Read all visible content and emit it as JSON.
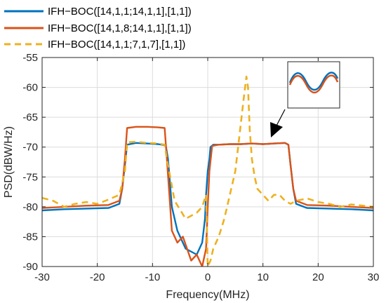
{
  "chart_data": {
    "type": "line",
    "xlabel": "Frequency(MHz)",
    "ylabel": "PSD(dBW/Hz)",
    "xlim": [
      -30,
      30
    ],
    "ylim": [
      -90,
      -55
    ],
    "xticks": [
      "-30",
      "-20",
      "-10",
      "0",
      "10",
      "20",
      "30"
    ],
    "xtick_values": [
      -30,
      -20,
      -10,
      0,
      10,
      20,
      30
    ],
    "yticks": [
      "-55",
      "-60",
      "-65",
      "-70",
      "-75",
      "-80",
      "-85",
      "-90"
    ],
    "ytick_values": [
      -55,
      -60,
      -65,
      -70,
      -75,
      -80,
      -85,
      -90
    ],
    "grid": true,
    "legend_position": "top-left, above plot",
    "inset": "zoom box near (12, -61) with arrow pointing to the right main lobe at about (10, -69.6)",
    "series": [
      {
        "name": "IFH−BOC([14,1,1;14,1,1],[1,1])",
        "color": "#0072BD",
        "style": "solid",
        "x": [
          -30,
          -26,
          -22,
          -18,
          -16,
          -15.5,
          -15,
          -14.6,
          -13,
          -11,
          -9,
          -7.6,
          -7.2,
          -6.5,
          -5.5,
          -4,
          -2,
          -1,
          -0.5,
          -0.3,
          0,
          0.3,
          0.5,
          1,
          2,
          4,
          6,
          8,
          10,
          12,
          14,
          14.6,
          15,
          15.5,
          16,
          18,
          22,
          26,
          30
        ],
        "y": [
          -80.6,
          -80.4,
          -80.3,
          -80.2,
          -79.5,
          -77,
          -73,
          -69.6,
          -69.3,
          -69.4,
          -69.5,
          -69.7,
          -72,
          -80,
          -84,
          -87,
          -88,
          -86,
          -82,
          -78,
          -74,
          -72,
          -70,
          -69.6,
          -69.6,
          -69.5,
          -69.5,
          -69.4,
          -69.5,
          -69.4,
          -69.3,
          -69.6,
          -73,
          -77,
          -79.5,
          -80.2,
          -80.3,
          -80.4,
          -80.6
        ]
      },
      {
        "name": "IFH−BOC([14,1,8;14,1,1],[1,1])",
        "color": "#D95319",
        "style": "solid",
        "x": [
          -30,
          -26,
          -22,
          -18,
          -16,
          -15.5,
          -15,
          -14.6,
          -13,
          -11,
          -9,
          -7.8,
          -7.4,
          -6.5,
          -5.5,
          -4.5,
          -3,
          -2,
          -1,
          -0.3,
          0,
          0.3,
          0.8,
          2,
          4,
          6,
          8,
          10,
          12,
          14,
          14.6,
          15,
          15.5,
          16,
          18,
          22,
          26,
          30
        ],
        "y": [
          -80.2,
          -80,
          -79.8,
          -79.7,
          -79,
          -77,
          -72,
          -66.8,
          -66.6,
          -66.6,
          -66.7,
          -66.8,
          -72,
          -84,
          -86,
          -85,
          -89,
          -88,
          -90,
          -87,
          -80,
          -74,
          -69.8,
          -69.6,
          -69.5,
          -69.5,
          -69.4,
          -69.5,
          -69.4,
          -69.3,
          -69.6,
          -73,
          -77,
          -79,
          -79.7,
          -79.8,
          -80,
          -80.2
        ]
      },
      {
        "name": "IFH−BOC([14,1,1;7,1,7],[1,1])",
        "color": "#EDB120",
        "style": "dashed",
        "x": [
          -30,
          -28,
          -26,
          -24,
          -22,
          -20,
          -18,
          -16,
          -15.5,
          -15,
          -14.6,
          -13,
          -11,
          -9,
          -7.8,
          -7.4,
          -6,
          -4,
          -2,
          -1,
          -0.3,
          0,
          0.5,
          1,
          2,
          3,
          4,
          5,
          5.5,
          6,
          6.5,
          7,
          7.3,
          7.6,
          8,
          8.5,
          9,
          10,
          11,
          12,
          13,
          14,
          15,
          16,
          18,
          20,
          22,
          24,
          26,
          28,
          30
        ],
        "y": [
          -78.5,
          -79,
          -80,
          -79.5,
          -79.2,
          -79.5,
          -78.8,
          -78,
          -76,
          -74,
          -69.2,
          -69.1,
          -69.3,
          -69.4,
          -69.6,
          -72,
          -79,
          -82,
          -81,
          -80,
          -78,
          -90,
          -89,
          -87,
          -85,
          -82,
          -78,
          -74,
          -70,
          -66,
          -62,
          -58.2,
          -60,
          -67,
          -72,
          -75,
          -77,
          -78,
          -79,
          -78,
          -78,
          -79,
          -79.5,
          -79,
          -78.6,
          -79.2,
          -79.5,
          -80,
          -79.6,
          -79.8,
          -80
        ]
      }
    ]
  }
}
